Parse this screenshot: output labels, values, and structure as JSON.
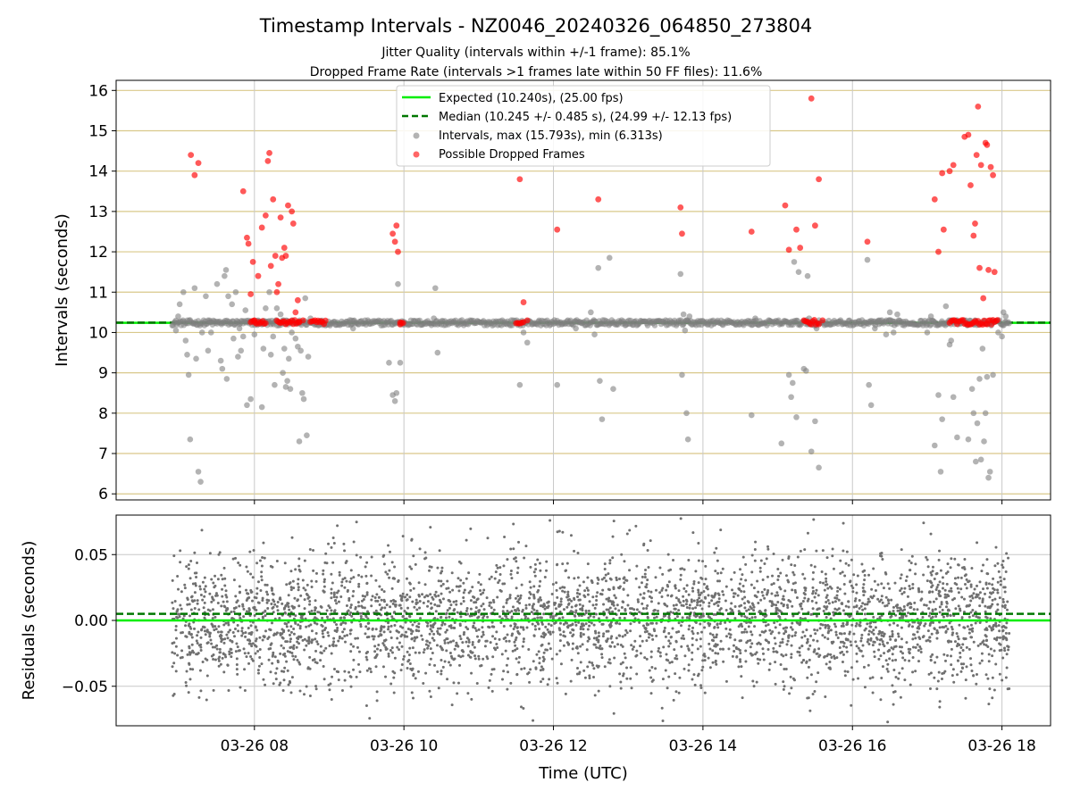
{
  "chart_data": [
    {
      "type": "scatter",
      "title": "Timestamp Intervals - NZ0046_20240326_064850_273804",
      "subtitle_lines": [
        "Jitter Quality (intervals within +/-1 frame): 85.1%",
        "Dropped Frame Rate (intervals >1 frames late within 50 FF files): 11.6%"
      ],
      "ylabel": "Intervals (seconds)",
      "ylim": [
        5.85,
        16.25
      ],
      "yticks": [
        6,
        7,
        8,
        9,
        10,
        11,
        12,
        13,
        14,
        15,
        16
      ],
      "xlim_hours": [
        6.15,
        18.65
      ],
      "xticks_hours": [
        8,
        10,
        12,
        14,
        16,
        18
      ],
      "grid": "on",
      "legend_position": "upper center",
      "expected_line": {
        "label": "Expected (10.240s), (25.00 fps)",
        "y": 10.24,
        "color": "#00ee00"
      },
      "median_line": {
        "label": "Median (10.245 +/- 0.485 s), (24.99 +/- 12.13 fps)",
        "y": 10.245,
        "color": "#007700"
      },
      "intervals_series": {
        "label": "Intervals, max (15.793s), min (6.313s)",
        "color": "#808080",
        "baseline_range_hours": [
          6.9,
          18.1
        ],
        "baseline_value": 10.24,
        "points": [
          [
            6.95,
            10.05
          ],
          [
            6.98,
            10.4
          ],
          [
            7.0,
            10.7
          ],
          [
            7.05,
            11.0
          ],
          [
            7.08,
            9.8
          ],
          [
            7.1,
            9.45
          ],
          [
            7.12,
            8.95
          ],
          [
            7.14,
            7.35
          ],
          [
            7.2,
            11.1
          ],
          [
            7.22,
            9.35
          ],
          [
            7.25,
            6.55
          ],
          [
            7.28,
            6.3
          ],
          [
            7.3,
            10.0
          ],
          [
            7.35,
            10.9
          ],
          [
            7.38,
            9.55
          ],
          [
            7.4,
            10.3
          ],
          [
            7.42,
            10.0
          ],
          [
            7.5,
            11.2
          ],
          [
            7.55,
            9.3
          ],
          [
            7.57,
            9.1
          ],
          [
            7.6,
            11.4
          ],
          [
            7.62,
            11.55
          ],
          [
            7.63,
            8.85
          ],
          [
            7.65,
            10.9
          ],
          [
            7.7,
            10.7
          ],
          [
            7.72,
            9.85
          ],
          [
            7.75,
            11.0
          ],
          [
            7.78,
            9.4
          ],
          [
            7.8,
            10.1
          ],
          [
            7.82,
            9.55
          ],
          [
            7.85,
            9.9
          ],
          [
            7.88,
            10.55
          ],
          [
            7.9,
            8.2
          ],
          [
            7.95,
            8.35
          ],
          [
            8.0,
            9.95
          ],
          [
            8.05,
            10.3
          ],
          [
            8.1,
            8.15
          ],
          [
            8.12,
            9.6
          ],
          [
            8.15,
            10.6
          ],
          [
            8.2,
            11.0
          ],
          [
            8.22,
            9.45
          ],
          [
            8.25,
            9.9
          ],
          [
            8.27,
            8.7
          ],
          [
            8.3,
            10.6
          ],
          [
            8.35,
            10.45
          ],
          [
            8.38,
            9.0
          ],
          [
            8.4,
            9.6
          ],
          [
            8.42,
            8.65
          ],
          [
            8.44,
            8.8
          ],
          [
            8.46,
            9.35
          ],
          [
            8.48,
            8.6
          ],
          [
            8.5,
            10.0
          ],
          [
            8.55,
            9.85
          ],
          [
            8.58,
            9.65
          ],
          [
            8.6,
            7.3
          ],
          [
            8.62,
            9.55
          ],
          [
            8.64,
            8.5
          ],
          [
            8.66,
            8.35
          ],
          [
            8.68,
            10.85
          ],
          [
            8.7,
            7.45
          ],
          [
            8.72,
            9.4
          ],
          [
            8.75,
            10.35
          ],
          [
            9.3,
            10.3
          ],
          [
            9.32,
            10.1
          ],
          [
            9.8,
            9.25
          ],
          [
            9.85,
            8.45
          ],
          [
            9.88,
            8.3
          ],
          [
            9.9,
            8.5
          ],
          [
            9.92,
            11.2
          ],
          [
            9.95,
            9.25
          ],
          [
            10.4,
            10.35
          ],
          [
            10.42,
            11.1
          ],
          [
            10.45,
            9.5
          ],
          [
            11.55,
            8.7
          ],
          [
            11.6,
            10.0
          ],
          [
            11.65,
            9.75
          ],
          [
            12.05,
            8.7
          ],
          [
            12.3,
            10.1
          ],
          [
            12.5,
            10.5
          ],
          [
            12.55,
            9.95
          ],
          [
            12.6,
            11.6
          ],
          [
            12.62,
            8.8
          ],
          [
            12.65,
            7.85
          ],
          [
            12.75,
            11.85
          ],
          [
            12.8,
            8.6
          ],
          [
            13.7,
            11.45
          ],
          [
            13.72,
            8.95
          ],
          [
            13.74,
            10.45
          ],
          [
            13.76,
            10.05
          ],
          [
            13.78,
            8.0
          ],
          [
            13.8,
            7.35
          ],
          [
            13.82,
            10.4
          ],
          [
            14.65,
            7.95
          ],
          [
            14.7,
            10.35
          ],
          [
            15.05,
            7.25
          ],
          [
            15.15,
            8.95
          ],
          [
            15.18,
            8.4
          ],
          [
            15.2,
            8.75
          ],
          [
            15.22,
            11.75
          ],
          [
            15.25,
            7.9
          ],
          [
            15.28,
            11.5
          ],
          [
            15.35,
            9.1
          ],
          [
            15.38,
            9.05
          ],
          [
            15.4,
            11.4
          ],
          [
            15.42,
            10.35
          ],
          [
            15.45,
            7.05
          ],
          [
            15.5,
            7.8
          ],
          [
            15.52,
            10.1
          ],
          [
            15.55,
            6.65
          ],
          [
            16.2,
            11.8
          ],
          [
            16.22,
            8.7
          ],
          [
            16.25,
            8.2
          ],
          [
            16.3,
            10.1
          ],
          [
            16.35,
            10.3
          ],
          [
            16.45,
            9.95
          ],
          [
            16.5,
            10.5
          ],
          [
            16.55,
            10.0
          ],
          [
            16.6,
            10.45
          ],
          [
            17.0,
            10.0
          ],
          [
            17.05,
            10.4
          ],
          [
            17.1,
            7.2
          ],
          [
            17.15,
            8.45
          ],
          [
            17.18,
            6.55
          ],
          [
            17.2,
            7.85
          ],
          [
            17.25,
            10.65
          ],
          [
            17.3,
            9.7
          ],
          [
            17.32,
            9.8
          ],
          [
            17.35,
            8.4
          ],
          [
            17.4,
            7.4
          ],
          [
            17.5,
            10.3
          ],
          [
            17.55,
            7.35
          ],
          [
            17.6,
            8.6
          ],
          [
            17.62,
            8.0
          ],
          [
            17.65,
            6.8
          ],
          [
            17.67,
            7.75
          ],
          [
            17.7,
            8.85
          ],
          [
            17.72,
            6.85
          ],
          [
            17.74,
            9.6
          ],
          [
            17.76,
            7.3
          ],
          [
            17.78,
            8.0
          ],
          [
            17.8,
            8.9
          ],
          [
            17.82,
            6.4
          ],
          [
            17.84,
            6.55
          ],
          [
            17.88,
            8.95
          ],
          [
            17.95,
            10.0
          ],
          [
            18.0,
            9.9
          ],
          [
            18.02,
            10.5
          ],
          [
            18.05,
            10.4
          ]
        ]
      },
      "dropped_series": {
        "label": "Possible Dropped Frames",
        "color": "#ff0000",
        "points": [
          [
            7.15,
            14.4
          ],
          [
            7.2,
            13.9
          ],
          [
            7.25,
            14.2
          ],
          [
            7.85,
            13.5
          ],
          [
            7.9,
            12.35
          ],
          [
            7.92,
            12.2
          ],
          [
            7.95,
            10.95
          ],
          [
            7.98,
            11.75
          ],
          [
            8.0,
            10.3
          ],
          [
            8.05,
            11.4
          ],
          [
            8.1,
            12.6
          ],
          [
            8.15,
            12.9
          ],
          [
            8.18,
            14.25
          ],
          [
            8.2,
            14.45
          ],
          [
            8.22,
            11.65
          ],
          [
            8.25,
            13.3
          ],
          [
            8.28,
            11.9
          ],
          [
            8.3,
            11.0
          ],
          [
            8.32,
            11.2
          ],
          [
            8.35,
            12.85
          ],
          [
            8.37,
            11.85
          ],
          [
            8.4,
            12.1
          ],
          [
            8.42,
            11.9
          ],
          [
            8.45,
            13.15
          ],
          [
            8.5,
            13.0
          ],
          [
            8.52,
            12.7
          ],
          [
            8.55,
            10.5
          ],
          [
            8.58,
            10.8
          ],
          [
            8.6,
            10.25
          ],
          [
            8.65,
            10.3
          ],
          [
            9.85,
            12.45
          ],
          [
            9.88,
            12.25
          ],
          [
            9.9,
            12.65
          ],
          [
            9.92,
            12.0
          ],
          [
            9.95,
            10.25
          ],
          [
            11.55,
            13.8
          ],
          [
            11.6,
            10.75
          ],
          [
            11.65,
            10.3
          ],
          [
            12.05,
            12.55
          ],
          [
            12.6,
            13.3
          ],
          [
            13.7,
            13.1
          ],
          [
            13.72,
            12.45
          ],
          [
            14.65,
            12.5
          ],
          [
            15.1,
            13.15
          ],
          [
            15.15,
            12.05
          ],
          [
            15.25,
            12.55
          ],
          [
            15.3,
            12.1
          ],
          [
            15.45,
            15.8
          ],
          [
            15.5,
            12.65
          ],
          [
            15.55,
            13.8
          ],
          [
            15.6,
            10.3
          ],
          [
            16.2,
            12.25
          ],
          [
            17.1,
            13.3
          ],
          [
            17.15,
            12.0
          ],
          [
            17.2,
            13.95
          ],
          [
            17.22,
            12.55
          ],
          [
            17.3,
            14.0
          ],
          [
            17.35,
            14.15
          ],
          [
            17.5,
            14.85
          ],
          [
            17.55,
            14.9
          ],
          [
            17.58,
            13.65
          ],
          [
            17.62,
            12.4
          ],
          [
            17.64,
            12.7
          ],
          [
            17.66,
            14.4
          ],
          [
            17.68,
            15.6
          ],
          [
            17.7,
            11.6
          ],
          [
            17.72,
            14.15
          ],
          [
            17.75,
            10.85
          ],
          [
            17.78,
            14.7
          ],
          [
            17.8,
            14.65
          ],
          [
            17.82,
            11.55
          ],
          [
            17.85,
            14.1
          ],
          [
            17.88,
            13.9
          ],
          [
            17.9,
            11.5
          ]
        ],
        "baseline_clusters_hours": [
          [
            7.95,
            8.15
          ],
          [
            8.3,
            8.6
          ],
          [
            8.75,
            8.95
          ],
          [
            9.95,
            10.0
          ],
          [
            11.5,
            11.6
          ],
          [
            15.35,
            15.55
          ],
          [
            17.3,
            17.95
          ]
        ],
        "baseline_value": 10.25
      }
    },
    {
      "type": "scatter",
      "xlabel": "Time (UTC)",
      "ylabel": "Residuals (seconds)",
      "ylim": [
        -0.08,
        0.08
      ],
      "yticks": [
        -0.05,
        0.0,
        0.05
      ],
      "ytick_labels": [
        "−0.05",
        "0.00",
        "0.05"
      ],
      "xlim_hours": [
        6.15,
        18.65
      ],
      "xticks_hours": [
        8,
        10,
        12,
        14,
        16,
        18
      ],
      "xtick_labels": [
        "03-26 08",
        "03-26 10",
        "03-26 12",
        "03-26 14",
        "03-26 16",
        "03-26 18"
      ],
      "grid": "on",
      "expected_line": {
        "y": 0.0,
        "color": "#00ee00"
      },
      "median_line": {
        "y": 0.005,
        "color": "#007700"
      },
      "residual_series": {
        "color": "#707070",
        "x_range_hours": [
          6.9,
          18.1
        ],
        "spread_std": 0.025,
        "clip": [
          -0.078,
          0.078
        ]
      }
    }
  ]
}
